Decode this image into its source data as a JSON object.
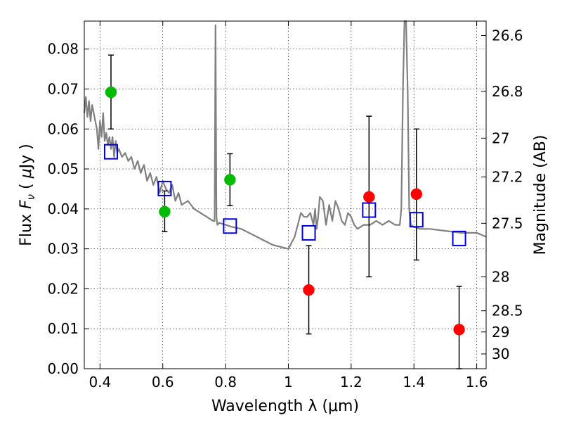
{
  "chart_data": {
    "type": "scatter",
    "xlabel": "Wavelength  λ (μm)",
    "ylabel": "Flux  F_ν  ( μJy )",
    "ylabel_parts": {
      "pre": "Flux  ",
      "var": "F",
      "sub": "ν",
      "post": "  ( ",
      "mu": "μ",
      "unit": "Jy )"
    },
    "y2label": "Magnitude (AB)",
    "xlim": [
      0.35,
      1.63
    ],
    "ylim": [
      0.0,
      0.087
    ],
    "xticks": [
      0.4,
      0.6,
      0.8,
      1.0,
      1.2,
      1.4,
      1.6
    ],
    "xtick_labels": [
      "0.4",
      "0.6",
      "0.8",
      "1",
      "1.2",
      "1.4",
      "1.6"
    ],
    "yticks": [
      0.0,
      0.01,
      0.02,
      0.03,
      0.04,
      0.05,
      0.06,
      0.07,
      0.08
    ],
    "ytick_labels": [
      "0.00",
      "0.01",
      "0.02",
      "0.03",
      "0.04",
      "0.05",
      "0.06",
      "0.07",
      "0.08"
    ],
    "y2ticks": [
      {
        "label": "26.6",
        "flux": 0.0834
      },
      {
        "label": "26.8",
        "flux": 0.0694
      },
      {
        "label": "27",
        "flux": 0.0577
      },
      {
        "label": "27.2",
        "flux": 0.048
      },
      {
        "label": "27.5",
        "flux": 0.0364
      },
      {
        "label": "28",
        "flux": 0.023
      },
      {
        "label": "28.5",
        "flux": 0.0145
      },
      {
        "label": "29",
        "flux": 0.0092
      },
      {
        "label": "30",
        "flux": 0.0037
      }
    ],
    "grid": true,
    "series": [
      {
        "name": "observed-green",
        "color": "#00bb00",
        "points": [
          {
            "x": 0.435,
            "y": 0.0692,
            "err_low": 0.06,
            "err_high": 0.0785
          },
          {
            "x": 0.606,
            "y": 0.0393,
            "err_low": 0.0343,
            "err_high": 0.0445
          },
          {
            "x": 0.814,
            "y": 0.0473,
            "err_low": 0.0408,
            "err_high": 0.0538
          }
        ]
      },
      {
        "name": "observed-red",
        "color": "#ff0000",
        "points": [
          {
            "x": 1.065,
            "y": 0.0197,
            "err_low": 0.0087,
            "err_high": 0.0308
          },
          {
            "x": 1.257,
            "y": 0.043,
            "err_low": 0.023,
            "err_high": 0.0632
          },
          {
            "x": 1.408,
            "y": 0.0437,
            "err_low": 0.0272,
            "err_high": 0.06
          },
          {
            "x": 1.544,
            "y": 0.0098,
            "err_low": 0.0,
            "err_high": 0.0206
          }
        ]
      },
      {
        "name": "model-bandpass",
        "color": "#0000dd",
        "marker": "square",
        "points": [
          {
            "x": 0.435,
            "y": 0.0543
          },
          {
            "x": 0.606,
            "y": 0.0451
          },
          {
            "x": 0.814,
            "y": 0.0357
          },
          {
            "x": 1.065,
            "y": 0.034
          },
          {
            "x": 1.257,
            "y": 0.0397
          },
          {
            "x": 1.408,
            "y": 0.0373
          },
          {
            "x": 1.544,
            "y": 0.0326
          }
        ]
      },
      {
        "name": "model-spectrum",
        "color": "#808080",
        "type": "line",
        "x": [
          0.35,
          0.355,
          0.36,
          0.365,
          0.37,
          0.375,
          0.38,
          0.385,
          0.39,
          0.395,
          0.4,
          0.405,
          0.41,
          0.415,
          0.42,
          0.425,
          0.43,
          0.435,
          0.44,
          0.445,
          0.45,
          0.455,
          0.46,
          0.47,
          0.48,
          0.49,
          0.5,
          0.51,
          0.52,
          0.53,
          0.54,
          0.55,
          0.56,
          0.57,
          0.58,
          0.59,
          0.6,
          0.61,
          0.62,
          0.63,
          0.64,
          0.65,
          0.66,
          0.68,
          0.7,
          0.72,
          0.74,
          0.76,
          0.765,
          0.768,
          0.771,
          0.774,
          0.78,
          0.8,
          0.82,
          0.85,
          0.9,
          0.95,
          1.0,
          1.02,
          1.03,
          1.04,
          1.05,
          1.06,
          1.07,
          1.08,
          1.085,
          1.09,
          1.095,
          1.1,
          1.11,
          1.12,
          1.13,
          1.14,
          1.15,
          1.16,
          1.17,
          1.18,
          1.19,
          1.2,
          1.21,
          1.22,
          1.24,
          1.26,
          1.28,
          1.3,
          1.32,
          1.34,
          1.355,
          1.36,
          1.365,
          1.37,
          1.375,
          1.38,
          1.385,
          1.39,
          1.4,
          1.42,
          1.45,
          1.5,
          1.55,
          1.6,
          1.63
        ],
        "y": [
          0.064,
          0.068,
          0.063,
          0.067,
          0.062,
          0.066,
          0.064,
          0.062,
          0.06,
          0.055,
          0.062,
          0.058,
          0.064,
          0.057,
          0.059,
          0.056,
          0.058,
          0.055,
          0.058,
          0.053,
          0.057,
          0.054,
          0.055,
          0.053,
          0.054,
          0.052,
          0.053,
          0.05,
          0.052,
          0.049,
          0.051,
          0.047,
          0.049,
          0.046,
          0.048,
          0.044,
          0.047,
          0.045,
          0.044,
          0.046,
          0.042,
          0.044,
          0.041,
          0.042,
          0.04,
          0.039,
          0.038,
          0.037,
          0.037,
          0.086,
          0.038,
          0.036,
          0.0365,
          0.036,
          0.0355,
          0.035,
          0.033,
          0.031,
          0.03,
          0.033,
          0.036,
          0.039,
          0.038,
          0.038,
          0.039,
          0.036,
          0.04,
          0.035,
          0.038,
          0.043,
          0.042,
          0.036,
          0.041,
          0.037,
          0.042,
          0.04,
          0.037,
          0.036,
          0.039,
          0.038,
          0.036,
          0.035,
          0.036,
          0.036,
          0.037,
          0.036,
          0.037,
          0.036,
          0.036,
          0.04,
          0.07,
          0.087,
          0.087,
          0.07,
          0.04,
          0.036,
          0.0355,
          0.035,
          0.035,
          0.0345,
          0.034,
          0.034,
          0.033
        ]
      }
    ]
  }
}
